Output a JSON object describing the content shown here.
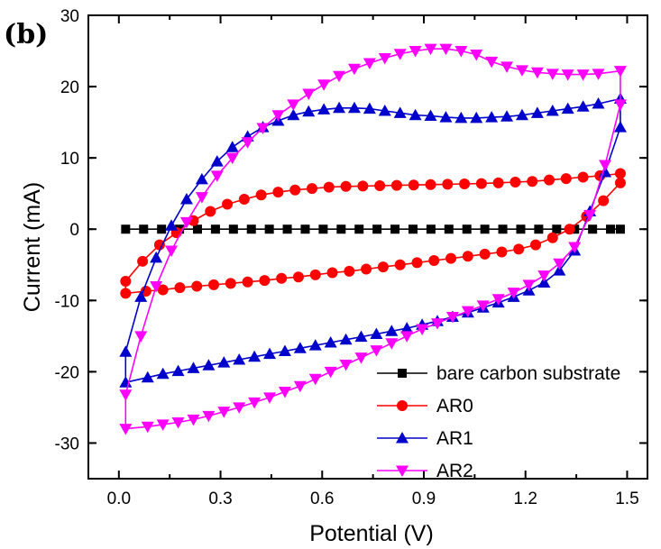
{
  "chart_data": {
    "type": "line",
    "panel_label": "(b)",
    "title": "",
    "xlabel": "Potential (V)",
    "ylabel": "Current (mA)",
    "xlim": [
      -0.09,
      1.56
    ],
    "ylim": [
      -35,
      30
    ],
    "xticks": [
      0.0,
      0.3,
      0.6,
      0.9,
      1.2,
      1.5
    ],
    "xtick_labels": [
      "0.0",
      "0.3",
      "0.6",
      "0.9",
      "1.2",
      "1.5"
    ],
    "yticks": [
      -30,
      -20,
      -10,
      0,
      10,
      20,
      30
    ],
    "ytick_labels": [
      "-30",
      "-20",
      "-10",
      "0",
      "10",
      "20",
      "30"
    ],
    "grid": false,
    "legend_position": "bottom-right",
    "series": [
      {
        "name": "bare carbon substrate",
        "color": "#000000",
        "marker": "square",
        "forward": {
          "x": [
            0.02,
            0.073,
            0.126,
            0.179,
            0.232,
            0.285,
            0.338,
            0.391,
            0.444,
            0.497,
            0.55,
            0.603,
            0.656,
            0.709,
            0.762,
            0.815,
            0.868,
            0.921,
            0.974,
            1.027,
            1.08,
            1.133,
            1.186,
            1.239,
            1.292,
            1.345,
            1.398,
            1.451,
            1.48
          ],
          "y": [
            0,
            0,
            0,
            0,
            0,
            0,
            0,
            0,
            0,
            0,
            0,
            0,
            0,
            0,
            0,
            0,
            0,
            0,
            0,
            0,
            0,
            0,
            0,
            0,
            0,
            0,
            0,
            0,
            0
          ]
        },
        "reverse": {
          "x": [
            0.02,
            1.48
          ],
          "y": [
            0,
            0
          ]
        }
      },
      {
        "name": "AR0",
        "color": "#ff0000",
        "marker": "circle",
        "forward": {
          "x": [
            0.02,
            0.07,
            0.12,
            0.17,
            0.22,
            0.27,
            0.32,
            0.37,
            0.42,
            0.47,
            0.52,
            0.57,
            0.62,
            0.67,
            0.72,
            0.77,
            0.82,
            0.87,
            0.92,
            0.97,
            1.02,
            1.07,
            1.12,
            1.17,
            1.22,
            1.27,
            1.32,
            1.37,
            1.42,
            1.48
          ],
          "y": [
            -7.3,
            -4.5,
            -2.2,
            -0.5,
            1.2,
            2.5,
            3.5,
            4.2,
            4.8,
            5.2,
            5.5,
            5.7,
            5.9,
            6.0,
            6.05,
            6.1,
            6.15,
            6.2,
            6.25,
            6.3,
            6.35,
            6.4,
            6.5,
            6.6,
            6.7,
            6.9,
            7.1,
            7.3,
            7.5,
            7.8
          ]
        },
        "reverse": {
          "x": [
            1.48,
            1.43,
            1.38,
            1.33,
            1.28,
            1.23,
            1.18,
            1.13,
            1.08,
            1.03,
            0.98,
            0.93,
            0.88,
            0.83,
            0.78,
            0.73,
            0.68,
            0.63,
            0.58,
            0.53,
            0.48,
            0.43,
            0.38,
            0.33,
            0.28,
            0.23,
            0.18,
            0.13,
            0.08,
            0.02
          ],
          "y": [
            6.5,
            4.0,
            1.8,
            0.0,
            -1.2,
            -2.2,
            -2.8,
            -3.2,
            -3.5,
            -3.8,
            -4.1,
            -4.4,
            -4.7,
            -5.0,
            -5.3,
            -5.6,
            -5.9,
            -6.1,
            -6.4,
            -6.7,
            -6.9,
            -7.2,
            -7.4,
            -7.6,
            -7.8,
            -8.0,
            -8.2,
            -8.5,
            -8.7,
            -9.0
          ]
        }
      },
      {
        "name": "AR1",
        "color": "#0000cc",
        "marker": "triangle-up",
        "forward": {
          "x": [
            0.02,
            0.065,
            0.11,
            0.155,
            0.2,
            0.245,
            0.29,
            0.335,
            0.38,
            0.425,
            0.47,
            0.515,
            0.56,
            0.605,
            0.65,
            0.695,
            0.74,
            0.785,
            0.83,
            0.875,
            0.92,
            0.965,
            1.01,
            1.055,
            1.1,
            1.145,
            1.19,
            1.235,
            1.28,
            1.325,
            1.37,
            1.415,
            1.48
          ],
          "y": [
            -17.2,
            -9.5,
            -4.0,
            0.5,
            4.2,
            7.0,
            9.5,
            11.5,
            13.0,
            14.3,
            15.2,
            16.0,
            16.5,
            16.8,
            17.0,
            17.0,
            16.9,
            16.6,
            16.3,
            16.0,
            15.9,
            15.7,
            15.6,
            15.6,
            15.7,
            15.8,
            16.0,
            16.3,
            16.6,
            16.9,
            17.2,
            17.6,
            18.3
          ]
        },
        "reverse": {
          "x": [
            1.48,
            1.435,
            1.39,
            1.345,
            1.3,
            1.255,
            1.21,
            1.165,
            1.12,
            1.075,
            1.03,
            0.985,
            0.94,
            0.895,
            0.85,
            0.805,
            0.76,
            0.715,
            0.67,
            0.625,
            0.58,
            0.535,
            0.49,
            0.445,
            0.4,
            0.355,
            0.31,
            0.265,
            0.22,
            0.175,
            0.13,
            0.085,
            0.02
          ],
          "y": [
            14.3,
            8.0,
            2.5,
            -3.0,
            -5.8,
            -7.5,
            -8.6,
            -9.5,
            -10.3,
            -11.0,
            -11.7,
            -12.3,
            -12.9,
            -13.4,
            -13.9,
            -14.3,
            -14.7,
            -15.1,
            -15.5,
            -15.9,
            -16.3,
            -16.7,
            -17.1,
            -17.5,
            -17.9,
            -18.3,
            -18.7,
            -19.1,
            -19.5,
            -19.9,
            -20.3,
            -20.8,
            -21.5
          ]
        }
      },
      {
        "name": "AR2",
        "color": "#ff00ff",
        "marker": "triangle-down",
        "forward": {
          "x": [
            0.02,
            0.065,
            0.11,
            0.155,
            0.2,
            0.245,
            0.29,
            0.335,
            0.38,
            0.425,
            0.47,
            0.515,
            0.56,
            0.605,
            0.65,
            0.695,
            0.74,
            0.785,
            0.83,
            0.875,
            0.92,
            0.965,
            1.01,
            1.055,
            1.1,
            1.145,
            1.19,
            1.235,
            1.28,
            1.325,
            1.37,
            1.415,
            1.48
          ],
          "y": [
            -23.2,
            -15.0,
            -8.0,
            -3.0,
            1.0,
            4.5,
            7.5,
            10.0,
            12.2,
            14.2,
            16.0,
            17.5,
            19.0,
            20.3,
            21.5,
            22.5,
            23.3,
            24.0,
            24.6,
            25.0,
            25.3,
            25.3,
            25.0,
            24.5,
            23.5,
            22.8,
            22.3,
            22.0,
            21.8,
            21.7,
            21.7,
            21.8,
            22.2
          ]
        },
        "reverse": {
          "x": [
            1.48,
            1.435,
            1.39,
            1.345,
            1.3,
            1.255,
            1.21,
            1.165,
            1.12,
            1.075,
            1.03,
            0.985,
            0.94,
            0.895,
            0.85,
            0.805,
            0.76,
            0.715,
            0.67,
            0.625,
            0.58,
            0.535,
            0.49,
            0.445,
            0.4,
            0.355,
            0.31,
            0.265,
            0.22,
            0.175,
            0.13,
            0.085,
            0.02
          ],
          "y": [
            17.5,
            9.0,
            2.0,
            -2.5,
            -4.8,
            -6.5,
            -7.8,
            -8.9,
            -9.8,
            -10.7,
            -11.5,
            -12.3,
            -13.2,
            -14.0,
            -15.0,
            -16.0,
            -17.0,
            -18.0,
            -19.0,
            -20.0,
            -21.0,
            -22.0,
            -22.8,
            -23.6,
            -24.3,
            -25.0,
            -25.6,
            -26.2,
            -26.7,
            -27.1,
            -27.4,
            -27.7,
            -28.0
          ]
        }
      }
    ]
  }
}
